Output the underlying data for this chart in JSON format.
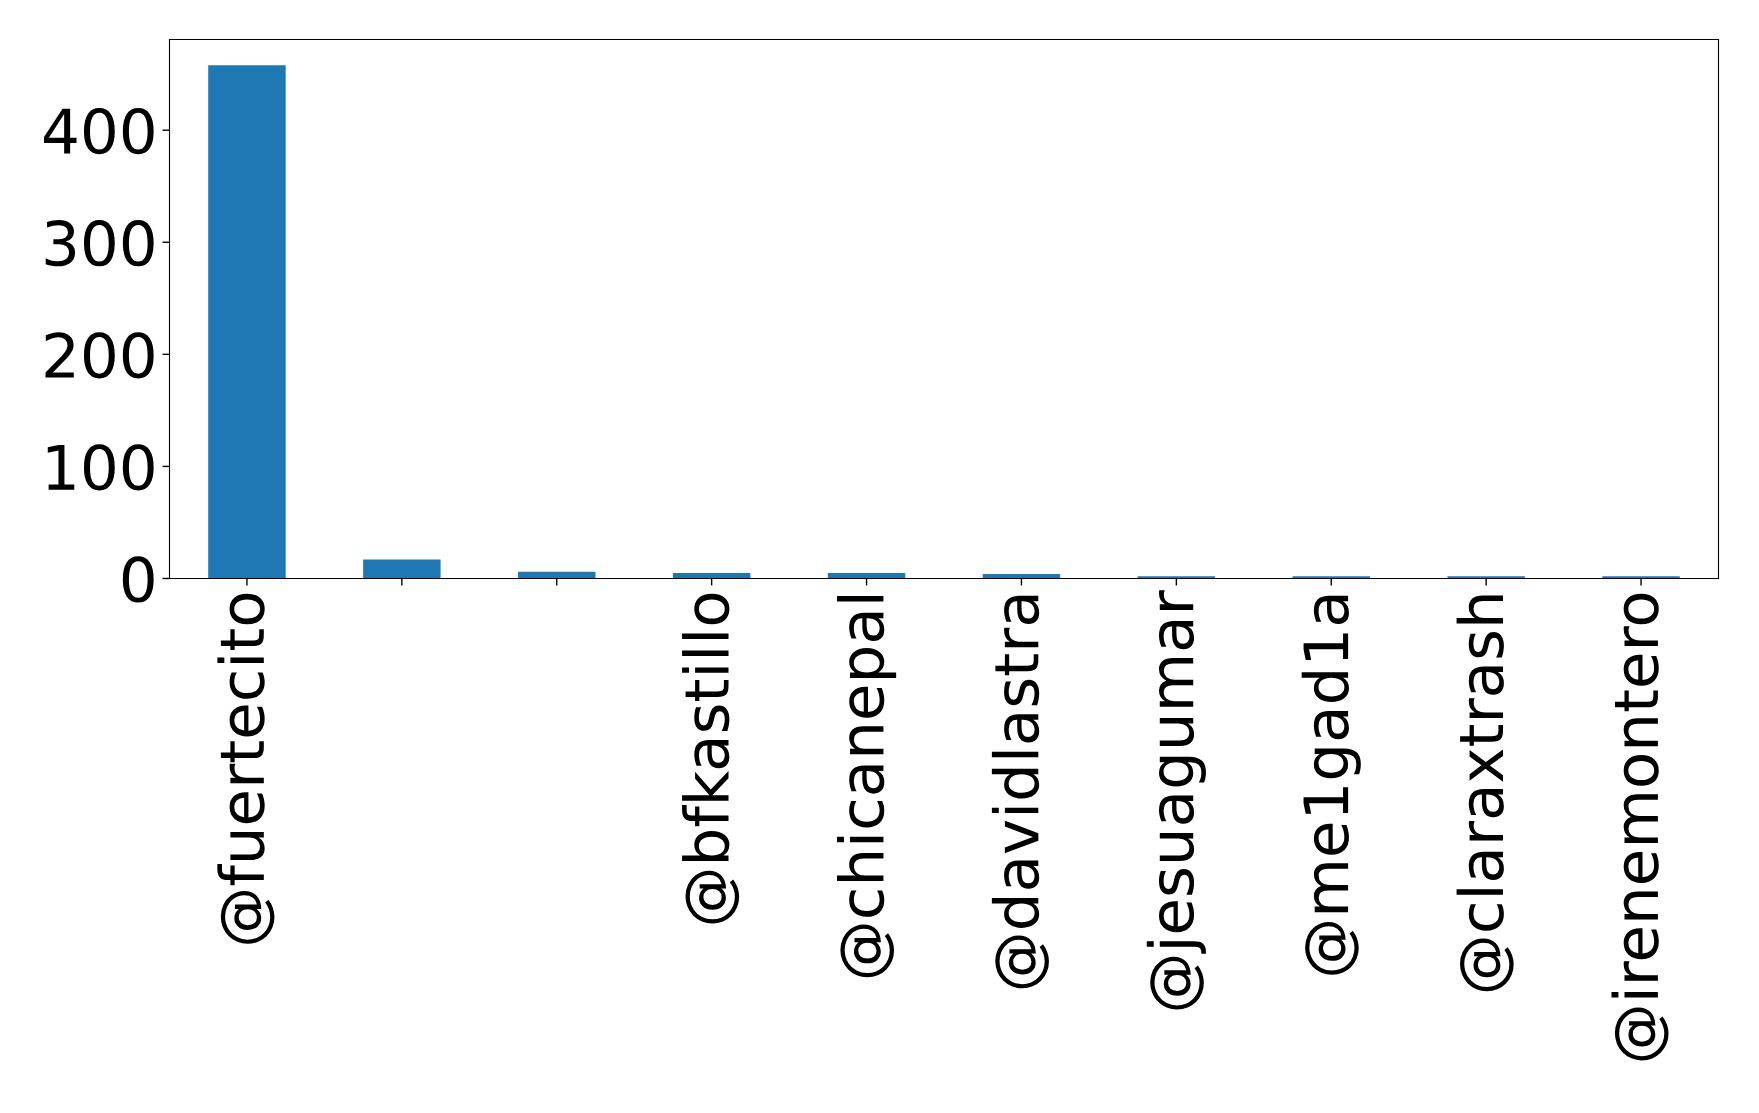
{
  "chart_data": {
    "type": "bar",
    "categories": [
      "@fuertecito",
      null,
      null,
      "@bfkastillo",
      "@chicanepal",
      "@davidlastra",
      "@jesuagumar",
      "@me1gad1a",
      "@claraxtrash",
      "@irenemontero"
    ],
    "values": [
      458,
      17,
      6,
      5,
      5,
      4,
      2,
      2,
      2,
      2
    ],
    "color": "#1f77b4",
    "ylim": [
      0,
      480.9
    ],
    "yticks": [
      0,
      100,
      200,
      300,
      400
    ],
    "grid": false,
    "legend": false
  }
}
